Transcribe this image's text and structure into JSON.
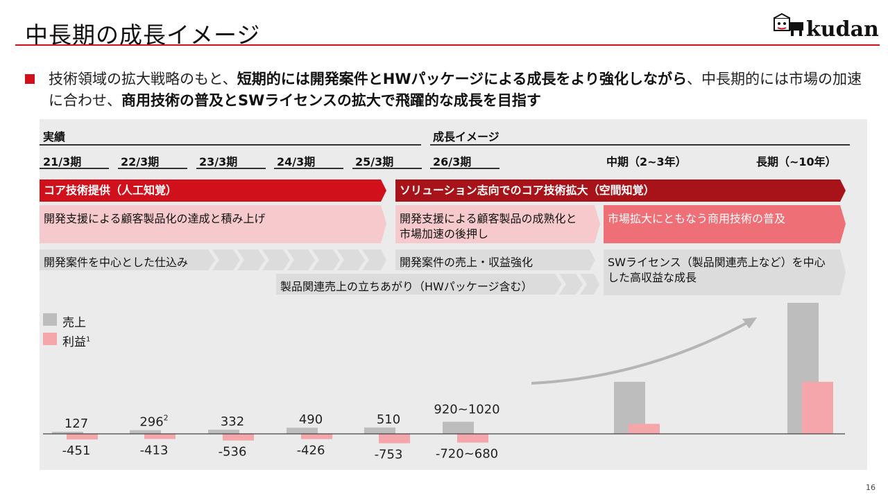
{
  "title": "中長期の成長イメージ",
  "logo_text": "kudan",
  "lead": {
    "part1": "技術領域の拡大戦略のもと、",
    "part2": "短期的には開発案件とHWパッケージによる成長をより強化しながら",
    "part3": "、中長期的には市場の加速に合わせ、",
    "part4": "商用技術の普及とSWライセンスの拡大で飛躍的な成長を目指す"
  },
  "headers": {
    "actual": "実績",
    "growth": "成長イメージ"
  },
  "periods": [
    "21/3期",
    "22/3期",
    "23/3期",
    "24/3期",
    "25/3期",
    "26/3期",
    "中期（2~3年）",
    "長期（~10年）"
  ],
  "bands": {
    "core": "コア技術提供（人工知覚）",
    "solution": "ソリューション志向でのコア技術拡大（空間知覚）",
    "pink1": "開発支援による顧客製品化の達成と積み上げ",
    "pink2": "開発支援による顧客製品の成熟化と市場加速の後押し",
    "pink3": "市場拡大にともなう商用技術の普及",
    "gray1": "開発案件を中心とした仕込み",
    "gray2": "開発案件の売上・収益強化",
    "gray3": "製品関連売上の立ちあがり（HWパッケージ含む）",
    "gray4": "SWライセンス（製品関連売上など）を中心した高収益な成長"
  },
  "legend": {
    "sales": "売上",
    "profit": "利益",
    "profit_sup": "1"
  },
  "colors": {
    "accent": "#d0101b",
    "dark_red": "#a81319",
    "sales": "#bdbdbd",
    "profit": "#f4a6aa",
    "pink_band": "#f6c9cc",
    "pink_band_strong": "#ee6f76",
    "gray_band": "#dddddd"
  },
  "chart_data": {
    "type": "bar",
    "categories": [
      "21/3期",
      "22/3期",
      "23/3期",
      "24/3期",
      "25/3期",
      "26/3期",
      "中期（2~3年）",
      "長期（~10年）"
    ],
    "series": [
      {
        "name": "売上",
        "values": [
          127,
          296,
          332,
          490,
          510,
          970,
          4000,
          10000
        ],
        "labels": [
          "127",
          "296",
          "332",
          "490",
          "510",
          "920~1020",
          "",
          ""
        ],
        "label_sup": [
          "",
          "2",
          "",
          "",
          "",
          "",
          "",
          ""
        ]
      },
      {
        "name": "利益",
        "values": [
          -451,
          -413,
          -536,
          -426,
          -753,
          -700,
          800,
          4000
        ],
        "labels": [
          "-451",
          "-413",
          "-536",
          "-426",
          "-753",
          "-720~680",
          "",
          ""
        ]
      }
    ]
  },
  "page_number": "16"
}
